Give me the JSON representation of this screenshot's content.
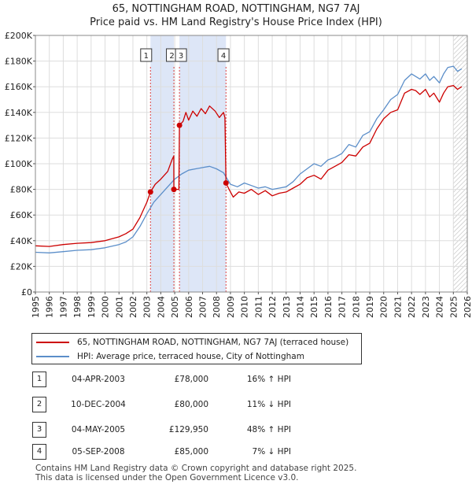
{
  "title": {
    "line1": "65, NOTTINGHAM ROAD, NOTTINGHAM, NG7 7AJ",
    "line2": "Price paid vs. HM Land Registry's House Price Index (HPI)"
  },
  "colors": {
    "property": "#cc0000",
    "hpi": "#5b8ec9",
    "shade": "#dde6f7",
    "grid": "#dddddd",
    "hatch": "#bbbbbb"
  },
  "legend": {
    "property": "65, NOTTINGHAM ROAD, NOTTINGHAM, NG7 7AJ (terraced house)",
    "hpi": "HPI: Average price, terraced house, City of Nottingham"
  },
  "sales": [
    {
      "num": "1",
      "date": "04-APR-2003",
      "price": "£78,000",
      "hpi": "16% ↑ HPI"
    },
    {
      "num": "2",
      "date": "10-DEC-2004",
      "price": "£80,000",
      "hpi": "11% ↓ HPI"
    },
    {
      "num": "3",
      "date": "04-MAY-2005",
      "price": "£129,950",
      "hpi": "48% ↑ HPI"
    },
    {
      "num": "4",
      "date": "05-SEP-2008",
      "price": "£85,000",
      "hpi": "7% ↓ HPI"
    }
  ],
  "footer": {
    "line1": "Contains HM Land Registry data © Crown copyright and database right 2025.",
    "line2": "This data is licensed under the Open Government Licence v3.0."
  },
  "chart_data": {
    "type": "line",
    "title": "65, NOTTINGHAM ROAD, NOTTINGHAM, NG7 7AJ — Price paid vs. HM Land Registry's House Price Index (HPI)",
    "xlabel": "",
    "ylabel": "",
    "xlim": [
      1995,
      2026
    ],
    "ylim": [
      0,
      200000
    ],
    "y_ticks": [
      0,
      20000,
      40000,
      60000,
      80000,
      100000,
      120000,
      140000,
      160000,
      180000,
      200000
    ],
    "y_tick_labels": [
      "£0",
      "£20K",
      "£40K",
      "£60K",
      "£80K",
      "£100K",
      "£120K",
      "£140K",
      "£160K",
      "£180K",
      "£200K"
    ],
    "x_ticks": [
      1995,
      1996,
      1997,
      1998,
      1999,
      2000,
      2001,
      2002,
      2003,
      2004,
      2005,
      2006,
      2007,
      2008,
      2009,
      2010,
      2011,
      2012,
      2013,
      2014,
      2015,
      2016,
      2017,
      2018,
      2019,
      2020,
      2021,
      2022,
      2023,
      2024,
      2025,
      2026
    ],
    "x_tick_labels": [
      "1995",
      "1996",
      "1997",
      "1998",
      "1999",
      "2000",
      "2001",
      "2002",
      "2003",
      "2004",
      "2005",
      "2006",
      "2007",
      "2008",
      "2009",
      "2010",
      "2011",
      "2012",
      "2013",
      "2014",
      "2015",
      "2016",
      "2017",
      "2018",
      "2019",
      "2020",
      "2021",
      "2022",
      "2023",
      "2024",
      "2025",
      "2026"
    ],
    "grid": true,
    "legend_position": "below",
    "shaded_ranges": [
      [
        2003.26,
        2004.94
      ],
      [
        2005.34,
        2008.68
      ]
    ],
    "hatch_from": 2025.0,
    "series": [
      {
        "name": "65, NOTTINGHAM ROAD, NOTTINGHAM, NG7 7AJ (terraced house)",
        "color": "#cc0000",
        "x": [
          1995.0,
          1996.0,
          1997.0,
          1998.0,
          1999.0,
          2000.0,
          2001.0,
          2001.5,
          2002.0,
          2002.5,
          2003.0,
          2003.26,
          2003.6,
          2004.0,
          2004.5,
          2004.8,
          2004.93,
          2004.94,
          2005.3,
          2005.34,
          2005.6,
          2005.8,
          2006.0,
          2006.3,
          2006.6,
          2006.9,
          2007.2,
          2007.5,
          2007.9,
          2008.2,
          2008.5,
          2008.6,
          2008.68,
          2008.9,
          2009.2,
          2009.6,
          2010.0,
          2010.5,
          2011.0,
          2011.5,
          2012.0,
          2012.5,
          2013.0,
          2013.5,
          2014.0,
          2014.5,
          2015.0,
          2015.5,
          2016.0,
          2016.5,
          2017.0,
          2017.5,
          2018.0,
          2018.5,
          2019.0,
          2019.5,
          2020.0,
          2020.5,
          2021.0,
          2021.5,
          2022.0,
          2022.3,
          2022.6,
          2023.0,
          2023.3,
          2023.6,
          2024.0,
          2024.3,
          2024.6,
          2025.0,
          2025.3,
          2025.6
        ],
        "values": [
          36000,
          35500,
          37000,
          38000,
          38500,
          40000,
          43000,
          45500,
          49000,
          58000,
          70000,
          78000,
          84000,
          88000,
          94000,
          103000,
          106000,
          80000,
          80000,
          129950,
          133000,
          140000,
          134000,
          141000,
          137000,
          143000,
          139000,
          145000,
          141000,
          136000,
          140000,
          136000,
          85000,
          80000,
          74000,
          78000,
          77000,
          80000,
          76000,
          79000,
          75000,
          77000,
          78000,
          81000,
          84000,
          89000,
          91000,
          88000,
          95000,
          98000,
          101000,
          107000,
          106000,
          113000,
          116000,
          127000,
          135000,
          140000,
          142000,
          155000,
          158000,
          157000,
          154000,
          158000,
          152000,
          155000,
          148000,
          155000,
          160000,
          161000,
          158000,
          160000
        ]
      },
      {
        "name": "HPI: Average price, terraced house, City of Nottingham",
        "color": "#5b8ec9",
        "x": [
          1995.0,
          1996.0,
          1997.0,
          1998.0,
          1999.0,
          2000.0,
          2001.0,
          2001.5,
          2002.0,
          2002.5,
          2003.0,
          2003.5,
          2004.0,
          2004.5,
          2005.0,
          2005.5,
          2006.0,
          2006.5,
          2007.0,
          2007.5,
          2008.0,
          2008.5,
          2009.0,
          2009.5,
          2010.0,
          2010.5,
          2011.0,
          2011.5,
          2012.0,
          2012.5,
          2013.0,
          2013.5,
          2014.0,
          2014.5,
          2015.0,
          2015.5,
          2016.0,
          2016.5,
          2017.0,
          2017.5,
          2018.0,
          2018.5,
          2019.0,
          2019.5,
          2020.0,
          2020.5,
          2021.0,
          2021.5,
          2022.0,
          2022.3,
          2022.6,
          2023.0,
          2023.3,
          2023.6,
          2024.0,
          2024.3,
          2024.6,
          2025.0,
          2025.3,
          2025.6
        ],
        "values": [
          31000,
          30500,
          31500,
          32500,
          33000,
          34500,
          37000,
          39000,
          43000,
          51000,
          61000,
          70000,
          76000,
          82000,
          88000,
          92000,
          95000,
          96000,
          97000,
          98000,
          96000,
          93000,
          84000,
          82000,
          85000,
          83000,
          81000,
          82000,
          80000,
          81000,
          82000,
          86000,
          92000,
          96000,
          100000,
          98000,
          103000,
          105000,
          108000,
          115000,
          113000,
          122000,
          125000,
          135000,
          142000,
          150000,
          154000,
          165000,
          170000,
          168000,
          166000,
          170000,
          165000,
          168000,
          163000,
          170000,
          175000,
          176000,
          172000,
          174000
        ]
      }
    ],
    "sale_markers": [
      {
        "label": "1",
        "x": 2003.26,
        "value": 78000
      },
      {
        "label": "2",
        "x": 2004.94,
        "value": 80000
      },
      {
        "label": "3",
        "x": 2005.34,
        "value": 129950
      },
      {
        "label": "4",
        "x": 2008.68,
        "value": 85000
      }
    ]
  }
}
